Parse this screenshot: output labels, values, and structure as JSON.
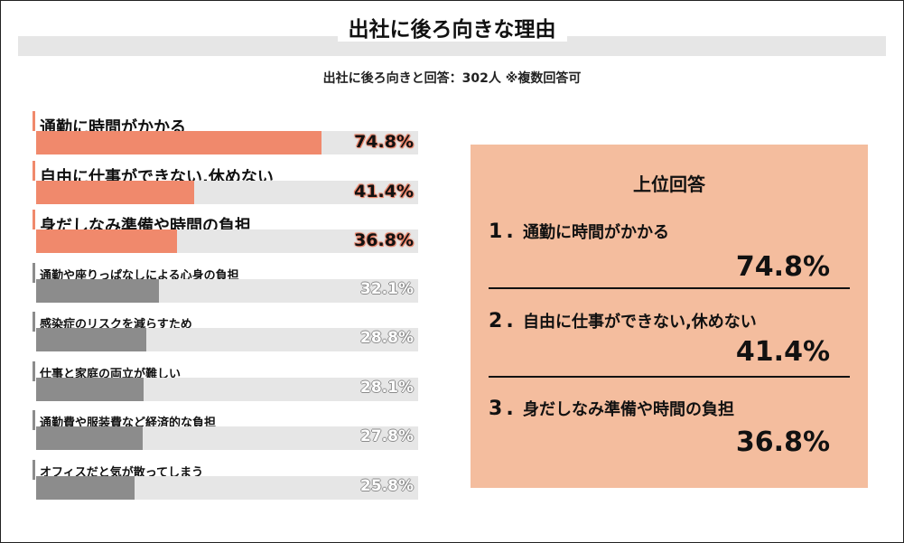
{
  "title": "出社に後ろ向きな理由",
  "subtitle": "出社に後ろ向きと回答：302人 ※複数回答可",
  "chart_data": {
    "type": "bar",
    "orientation": "horizontal",
    "categories": [
      "通勤に時間がかかる",
      "自由に仕事ができない,休めない",
      "身だしなみ準備や時間の負担",
      "通勤や座りっぱなしによる心身の負担",
      "感染症のリスクを減らすため",
      "仕事と家庭の両立が難しい",
      "通勤費や服装費など経済的な負担",
      "オフィスだと気が散ってしまう"
    ],
    "values": [
      74.8,
      41.4,
      36.8,
      32.1,
      28.8,
      28.1,
      27.8,
      25.8
    ],
    "value_labels": [
      "74.8%",
      "41.4%",
      "36.8%",
      "32.1%",
      "28.8%",
      "28.1%",
      "27.8%",
      "25.8%"
    ],
    "unit": "%",
    "xlim": [
      0,
      100
    ],
    "colors": {
      "highlight": "#f0896c",
      "normal": "#8c8c8c",
      "track": "#e6e6e6"
    }
  },
  "panel": {
    "title": "上位回答",
    "items": [
      {
        "rank": "1",
        "label": "通勤に時間がかかる",
        "value": "74.8%"
      },
      {
        "rank": "2",
        "label": "自由に仕事ができない,休めない",
        "value": "41.4%"
      },
      {
        "rank": "3",
        "label": "身だしなみ準備や時間の負担",
        "value": "36.8%"
      }
    ],
    "background": "#f4bd9e"
  }
}
